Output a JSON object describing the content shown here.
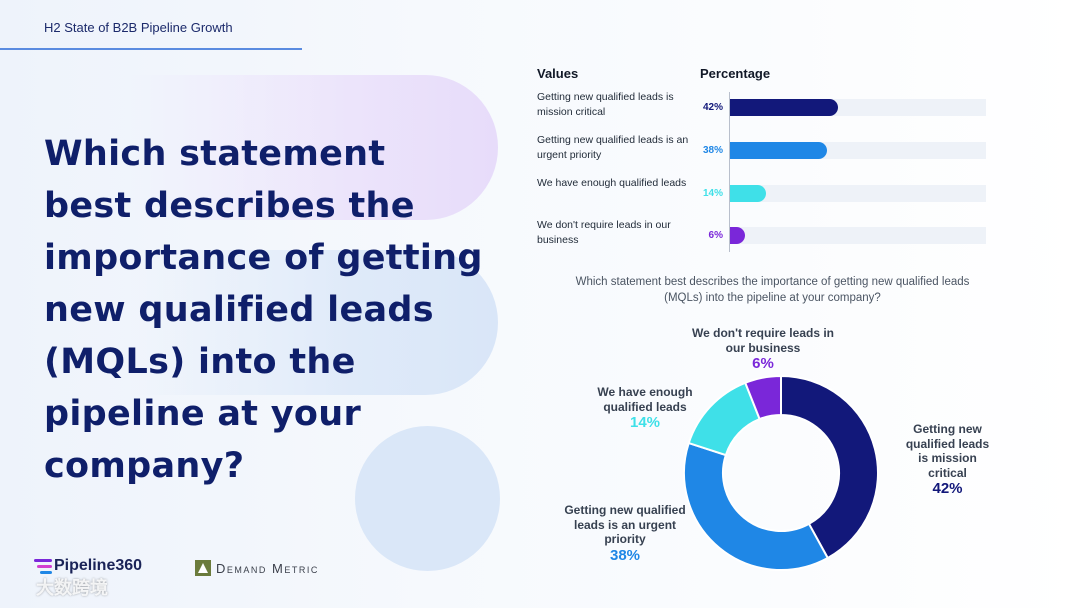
{
  "header": {
    "title": "H2 State of B2B Pipeline Growth"
  },
  "main": {
    "question": "Which statement best describes the importance of getting new qualified leads (MQLs) into the pipeline at your company?"
  },
  "table": {
    "col_values": "Values",
    "col_percentage": "Percentage"
  },
  "chart_data": [
    {
      "type": "bar",
      "orientation": "horizontal",
      "categories": [
        "Getting new qualified leads is mission critical",
        "Getting new qualified leads is an urgent priority",
        "We have enough qualified leads",
        "We don't require leads in our business"
      ],
      "values": [
        42,
        38,
        14,
        6
      ],
      "value_labels": [
        "42%",
        "38%",
        "14%",
        "6%"
      ],
      "xlim": [
        0,
        100
      ],
      "colors": [
        "#12187a",
        "#1f87e6",
        "#3fe0e8",
        "#7a27d9"
      ]
    },
    {
      "type": "pie",
      "donut": true,
      "title": "Which statement best describes the importance of getting new qualified leads (MQLs) into the pipeline at your company?",
      "categories": [
        "Getting new qualified leads is mission critical",
        "Getting new qualified leads is an urgent priority",
        "We have enough qualified leads",
        "We don't require leads in our business"
      ],
      "values": [
        42,
        38,
        14,
        6
      ],
      "value_labels": [
        "42%",
        "38%",
        "14%",
        "6%"
      ],
      "colors": [
        "#12187a",
        "#1f87e6",
        "#3fe0e8",
        "#7a27d9"
      ]
    }
  ],
  "bars": [
    {
      "label": "Getting new qualified leads is mission critical",
      "pct": "42%"
    },
    {
      "label": "Getting new qualified leads is an urgent priority",
      "pct": "38%"
    },
    {
      "label": "We have enough qualified leads",
      "pct": "14%"
    },
    {
      "label": "We don't require leads in our business",
      "pct": "6%"
    }
  ],
  "donut_labels": {
    "mission": {
      "text": "Getting new qualified leads is mission critical",
      "pct": "42%"
    },
    "urgent": {
      "text": "Getting new qualified leads is an urgent priority",
      "pct": "38%"
    },
    "enough": {
      "text": "We have enough qualified leads",
      "pct": "14%"
    },
    "none": {
      "text": "We don't require leads in our business",
      "pct": "6%"
    }
  },
  "footer": {
    "logo_pipeline": "Pipeline360",
    "logo_demand": "Demand Metric",
    "watermark": "大数跨境"
  }
}
